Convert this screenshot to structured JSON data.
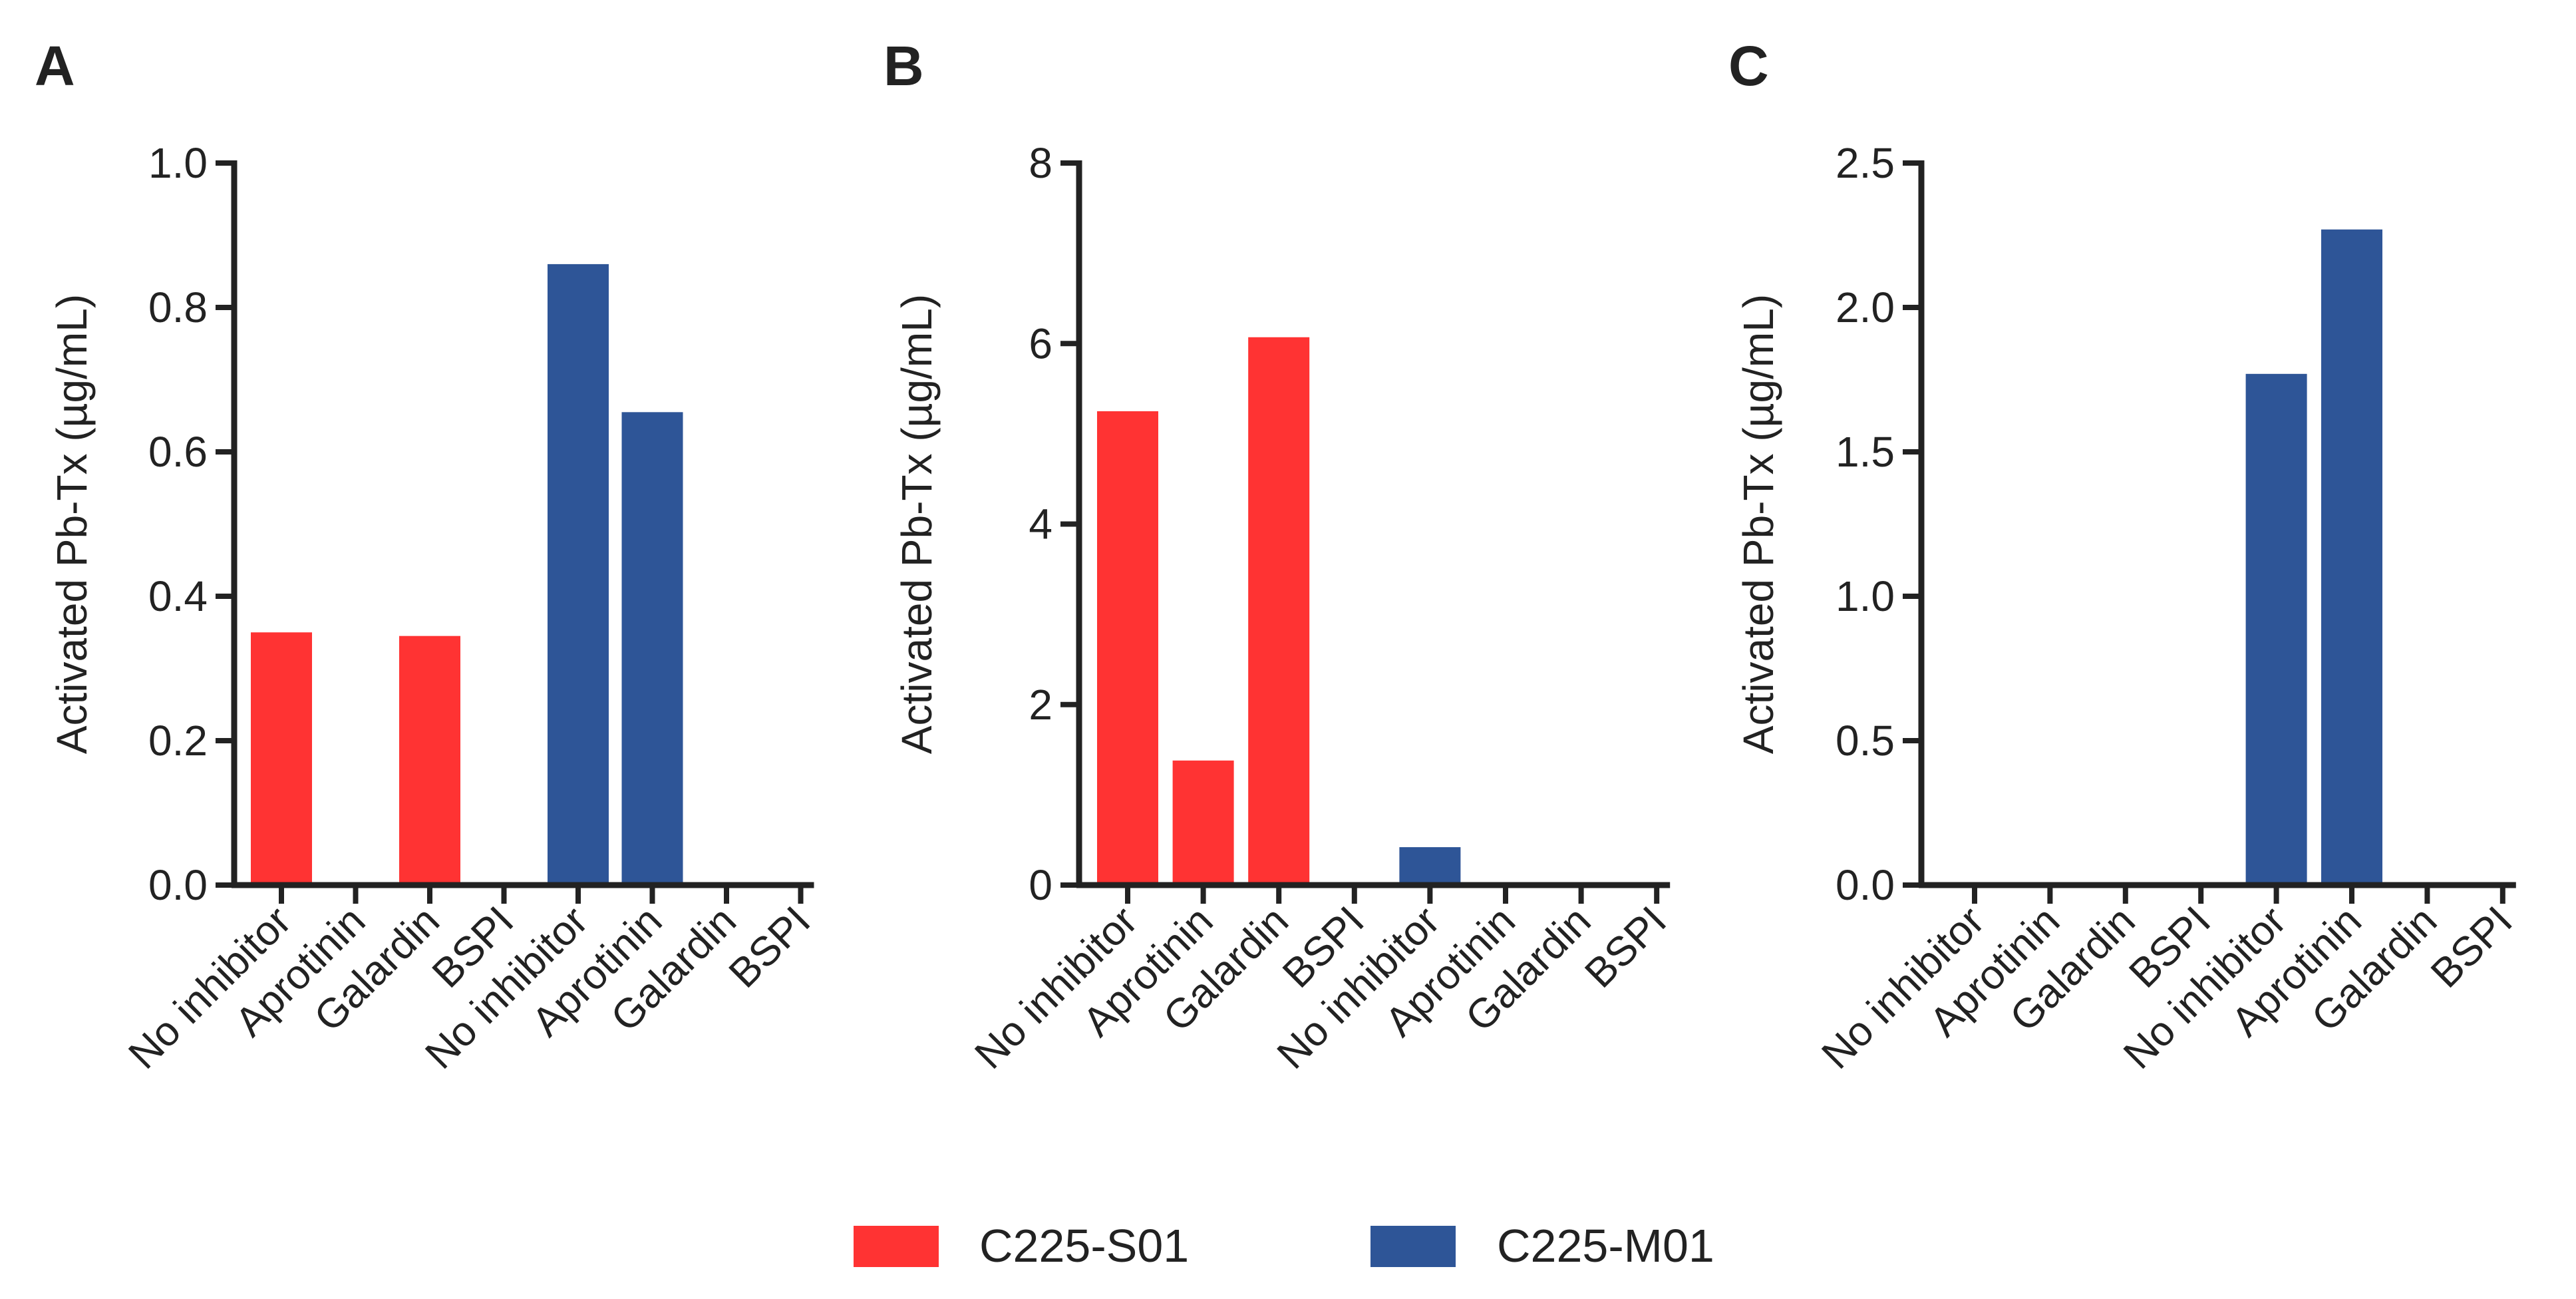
{
  "legend": [
    {
      "label": "C225-S01",
      "color": "#FF3333"
    },
    {
      "label": "C225-M01",
      "color": "#2E5597"
    }
  ],
  "chart_data": [
    {
      "type": "bar",
      "panel": "A",
      "ylabel": "Activated Pb-Tx (µg/mL)",
      "ylim": [
        0,
        1.0
      ],
      "yticks": [
        0.0,
        0.2,
        0.4,
        0.6,
        0.8,
        1.0
      ],
      "ytick_labels": [
        "0.0",
        "0.2",
        "0.4",
        "0.6",
        "0.8",
        "1.0"
      ],
      "categories": [
        "No inhibitor",
        "Aprotinin",
        "Galardin",
        "BSPI",
        "No inhibitor",
        "Aprotinin",
        "Galardin",
        "BSPI"
      ],
      "series": [
        {
          "name": "C225-S01",
          "values": [
            0.35,
            0,
            0.345,
            0,
            null,
            null,
            null,
            null
          ]
        },
        {
          "name": "C225-M01",
          "values": [
            null,
            null,
            null,
            null,
            0.86,
            0.655,
            0,
            0
          ]
        }
      ]
    },
    {
      "type": "bar",
      "panel": "B",
      "ylabel": "Activated Pb-Tx (µg/mL)",
      "ylim": [
        0,
        8
      ],
      "yticks": [
        0,
        2,
        4,
        6,
        8
      ],
      "ytick_labels": [
        "0",
        "2",
        "4",
        "6",
        "8"
      ],
      "categories": [
        "No inhibitor",
        "Aprotinin",
        "Galardin",
        "BSPI",
        "No inhibitor",
        "Aprotinin",
        "Galardin",
        "BSPI"
      ],
      "series": [
        {
          "name": "C225-S01",
          "values": [
            5.25,
            1.38,
            6.07,
            0,
            null,
            null,
            null,
            null
          ]
        },
        {
          "name": "C225-M01",
          "values": [
            null,
            null,
            null,
            null,
            0.42,
            0,
            0,
            0
          ]
        }
      ]
    },
    {
      "type": "bar",
      "panel": "C",
      "ylabel": "Activated Pb-Tx (µg/mL)",
      "ylim": [
        0,
        2.5
      ],
      "yticks": [
        0.0,
        0.5,
        1.0,
        1.5,
        2.0,
        2.5
      ],
      "ytick_labels": [
        "0.0",
        "0.5",
        "1.0",
        "1.5",
        "2.0",
        "2.5"
      ],
      "categories": [
        "No inhibitor",
        "Aprotinin",
        "Galardin",
        "BSPI",
        "No inhibitor",
        "Aprotinin",
        "Galardin",
        "BSPI"
      ],
      "series": [
        {
          "name": "C225-S01",
          "values": [
            0,
            0,
            0,
            0,
            null,
            null,
            null,
            null
          ]
        },
        {
          "name": "C225-M01",
          "values": [
            null,
            null,
            null,
            null,
            1.77,
            2.27,
            0,
            0
          ]
        }
      ]
    }
  ]
}
